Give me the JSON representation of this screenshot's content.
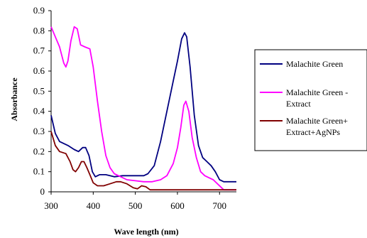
{
  "chart_data": {
    "type": "line",
    "title": "",
    "xlabel": "Wave length (nm)",
    "ylabel": "Absorbance",
    "xlim": [
      300,
      740
    ],
    "ylim": [
      0,
      0.9
    ],
    "x_ticks": [
      "300",
      "400",
      "500",
      "600",
      "700"
    ],
    "y_ticks": [
      "0",
      "0.1",
      "0.2",
      "0.3",
      "0.4",
      "0.5",
      "0.6",
      "0.7",
      "0.8",
      "0.9"
    ],
    "grid": false,
    "legend_position": "right",
    "series": [
      {
        "name": "Malachite Green",
        "color": "#000080",
        "points": [
          [
            300,
            0.38
          ],
          [
            310,
            0.29
          ],
          [
            320,
            0.25
          ],
          [
            340,
            0.23
          ],
          [
            355,
            0.21
          ],
          [
            365,
            0.2
          ],
          [
            375,
            0.22
          ],
          [
            382,
            0.22
          ],
          [
            390,
            0.18
          ],
          [
            398,
            0.1
          ],
          [
            405,
            0.075
          ],
          [
            415,
            0.085
          ],
          [
            430,
            0.085
          ],
          [
            450,
            0.075
          ],
          [
            470,
            0.08
          ],
          [
            500,
            0.08
          ],
          [
            520,
            0.08
          ],
          [
            530,
            0.09
          ],
          [
            545,
            0.13
          ],
          [
            560,
            0.25
          ],
          [
            575,
            0.4
          ],
          [
            590,
            0.55
          ],
          [
            600,
            0.65
          ],
          [
            610,
            0.76
          ],
          [
            617,
            0.79
          ],
          [
            622,
            0.77
          ],
          [
            630,
            0.62
          ],
          [
            640,
            0.38
          ],
          [
            650,
            0.23
          ],
          [
            660,
            0.17
          ],
          [
            670,
            0.15
          ],
          [
            680,
            0.13
          ],
          [
            690,
            0.1
          ],
          [
            700,
            0.06
          ],
          [
            710,
            0.05
          ],
          [
            740,
            0.05
          ]
        ]
      },
      {
        "name": "Malachite Green + Extract",
        "color": "#ff00ff",
        "points": [
          [
            300,
            0.82
          ],
          [
            310,
            0.77
          ],
          [
            320,
            0.72
          ],
          [
            330,
            0.64
          ],
          [
            335,
            0.62
          ],
          [
            340,
            0.65
          ],
          [
            347,
            0.75
          ],
          [
            355,
            0.82
          ],
          [
            362,
            0.81
          ],
          [
            370,
            0.73
          ],
          [
            380,
            0.72
          ],
          [
            392,
            0.71
          ],
          [
            400,
            0.62
          ],
          [
            410,
            0.45
          ],
          [
            420,
            0.3
          ],
          [
            430,
            0.18
          ],
          [
            440,
            0.12
          ],
          [
            450,
            0.09
          ],
          [
            460,
            0.08
          ],
          [
            480,
            0.06
          ],
          [
            500,
            0.055
          ],
          [
            520,
            0.05
          ],
          [
            540,
            0.05
          ],
          [
            560,
            0.06
          ],
          [
            575,
            0.08
          ],
          [
            590,
            0.14
          ],
          [
            600,
            0.22
          ],
          [
            608,
            0.32
          ],
          [
            615,
            0.43
          ],
          [
            620,
            0.45
          ],
          [
            627,
            0.4
          ],
          [
            635,
            0.27
          ],
          [
            645,
            0.17
          ],
          [
            655,
            0.1
          ],
          [
            665,
            0.08
          ],
          [
            675,
            0.07
          ],
          [
            685,
            0.06
          ],
          [
            695,
            0.04
          ],
          [
            710,
            0.01
          ],
          [
            740,
            0.01
          ]
        ]
      },
      {
        "name": "Malachite Green+ Extract+AgNPs",
        "color": "#800000",
        "points": [
          [
            300,
            0.3
          ],
          [
            310,
            0.23
          ],
          [
            320,
            0.2
          ],
          [
            335,
            0.19
          ],
          [
            345,
            0.15
          ],
          [
            352,
            0.11
          ],
          [
            358,
            0.1
          ],
          [
            365,
            0.12
          ],
          [
            372,
            0.15
          ],
          [
            378,
            0.15
          ],
          [
            385,
            0.12
          ],
          [
            393,
            0.08
          ],
          [
            400,
            0.045
          ],
          [
            410,
            0.03
          ],
          [
            425,
            0.03
          ],
          [
            440,
            0.04
          ],
          [
            455,
            0.05
          ],
          [
            465,
            0.05
          ],
          [
            480,
            0.04
          ],
          [
            495,
            0.02
          ],
          [
            505,
            0.015
          ],
          [
            515,
            0.03
          ],
          [
            525,
            0.025
          ],
          [
            535,
            0.01
          ],
          [
            560,
            0.01
          ],
          [
            600,
            0.01
          ],
          [
            650,
            0.01
          ],
          [
            700,
            0.01
          ],
          [
            740,
            0.01
          ]
        ]
      }
    ]
  },
  "legend": {
    "items": [
      {
        "lines": [
          "Malachite Green"
        ],
        "color": "#000080"
      },
      {
        "lines": [
          "Malachite Green -",
          "Extract"
        ],
        "color": "#ff00ff"
      },
      {
        "lines": [
          "Malachite Green+",
          "Extract+AgNPs"
        ],
        "color": "#800000"
      }
    ]
  }
}
